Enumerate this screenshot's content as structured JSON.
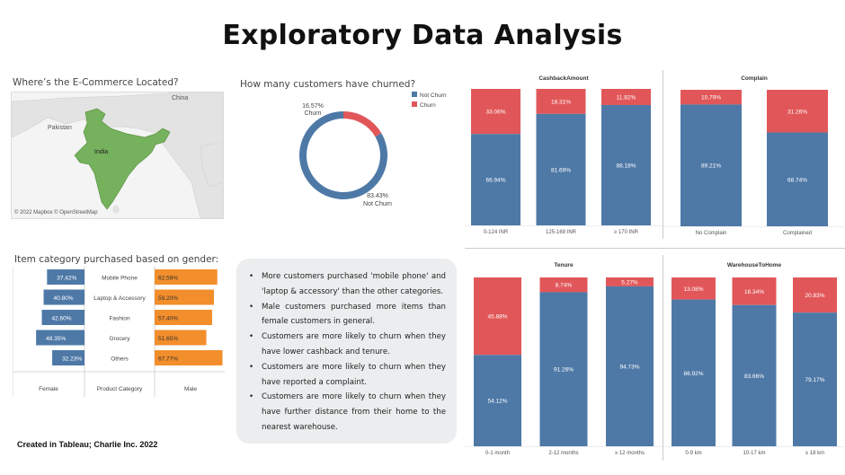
{
  "page": {
    "title": "Exploratory Data Analysis",
    "footer": "Created in Tableau; Charlie Inc. 2022"
  },
  "map": {
    "title": "Where’s the E-Commerce Located?",
    "labels": {
      "china": "China",
      "pakistan": "Pakistan",
      "india": "India"
    },
    "credit": "© 2022 Mapbox © OpenStreetMap",
    "colors": {
      "land": "#e3e3e3",
      "water": "#f4f4f4",
      "india": "#76b15d"
    }
  },
  "insights": [
    "More customers purchased 'mobile phone' and 'laptop & accessory' than the other categories.",
    "Male customers purchased more items than female customers in general.",
    "Customers are more likely to churn when they have lower cashback and tenure.",
    "Customers are more likely to churn when they have reported a complaint.",
    "Customers are more likely to churn when they have further distance from their home to the nearest warehouse."
  ],
  "chart_data": [
    {
      "id": "churn-donut",
      "type": "pie",
      "title": "How many customers have churned?",
      "legend": [
        {
          "name": "Not Churn",
          "color": "#4e79a7"
        },
        {
          "name": "Churn",
          "color": "#e15759"
        }
      ],
      "legend_placement": "right",
      "slices": [
        {
          "name": "Churn",
          "value": 16.57,
          "label": "16.57%",
          "sublabel": "Churn",
          "color": "#e15759"
        },
        {
          "name": "Not Churn",
          "value": 83.43,
          "label": "83.43%",
          "sublabel": "Not Churn",
          "color": "#4e79a7"
        }
      ]
    },
    {
      "id": "gender-category",
      "type": "bar",
      "title": "Item category purchased based on gender:",
      "categories": [
        "Mobile Phone",
        "Laptop & Accessory",
        "Fashion",
        "Grocery",
        "Others"
      ],
      "center_header": "Product Category",
      "series": [
        {
          "name": "Female",
          "color": "#4e79a7",
          "values": [
            37.42,
            40.8,
            42.6,
            48.35,
            32.23
          ],
          "labels": [
            "37.42%",
            "40.80%",
            "42.60%",
            "48.35%",
            "32.23%"
          ]
        },
        {
          "name": "Male",
          "color": "#f28e2b",
          "values": [
            62.58,
            59.2,
            57.4,
            51.65,
            67.77
          ],
          "labels": [
            "62.58%",
            "59.20%",
            "57.40%",
            "51.65%",
            "67.77%"
          ]
        }
      ]
    },
    {
      "id": "cashback",
      "type": "bar",
      "title": "CashbackAmount",
      "categories": [
        "0-124 INR",
        "125-169 INR",
        "≥ 170 INR"
      ],
      "series": [
        {
          "name": "Not Churn",
          "color": "#4e79a7",
          "values": [
            66.94,
            81.69,
            88.18
          ],
          "labels": [
            "66.94%",
            "81.69%",
            "88.18%"
          ]
        },
        {
          "name": "Churn",
          "color": "#e15759",
          "values": [
            33.06,
            18.31,
            11.82
          ],
          "labels": [
            "33.06%",
            "18.31%",
            "11.82%"
          ]
        }
      ]
    },
    {
      "id": "complain",
      "type": "bar",
      "title": "Complain",
      "categories": [
        "No Complain",
        "Complained"
      ],
      "series": [
        {
          "name": "Not Churn",
          "color": "#4e79a7",
          "values": [
            89.21,
            68.74
          ],
          "labels": [
            "89.21%",
            "68.74%"
          ]
        },
        {
          "name": "Churn",
          "color": "#e15759",
          "values": [
            10.79,
            31.26
          ],
          "labels": [
            "10.79%",
            "31.26%"
          ]
        }
      ]
    },
    {
      "id": "tenure",
      "type": "bar",
      "title": "Tenure",
      "categories": [
        "0-1 month",
        "2-12 months",
        "≥ 12 months"
      ],
      "series": [
        {
          "name": "Not Churn",
          "color": "#4e79a7",
          "values": [
            54.12,
            91.26,
            94.73
          ],
          "labels": [
            "54.12%",
            "91.26%",
            "94.73%"
          ]
        },
        {
          "name": "Churn",
          "color": "#e15759",
          "values": [
            45.88,
            8.74,
            5.27
          ],
          "labels": [
            "45.88%",
            "8.74%",
            "5.27%"
          ]
        }
      ]
    },
    {
      "id": "warehouse",
      "type": "bar",
      "title": "WarehouseToHome",
      "categories": [
        "0-9 km",
        "10-17 km",
        "≥ 18 km"
      ],
      "series": [
        {
          "name": "Not Churn",
          "color": "#4e79a7",
          "values": [
            86.92,
            83.66,
            79.17
          ],
          "labels": [
            "86.92%",
            "83.66%",
            "79.17%"
          ]
        },
        {
          "name": "Churn",
          "color": "#e15759",
          "values": [
            13.08,
            16.34,
            20.83
          ],
          "labels": [
            "13.08%",
            "16.34%",
            "20.83%"
          ]
        }
      ]
    }
  ]
}
